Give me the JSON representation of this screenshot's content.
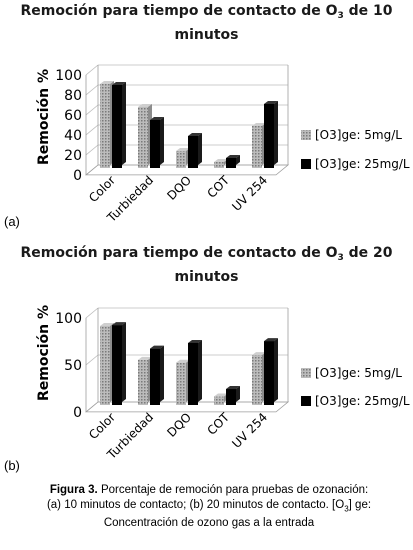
{
  "figure": {
    "label_a": "(a)",
    "label_b": "(b)",
    "caption_bold": "Figura 3.",
    "caption_part1": " Porcentaje de remoción para pruebas de ozonación: (a) 10 minutos de contacto; (b) 20 minutos de contacto. [O",
    "caption_sub": "3",
    "caption_part2": "] ge: Concentración de ozono gas a la entrada"
  },
  "chart_data": [
    {
      "type": "bar",
      "title_pre": "Remoción para tiempo de contacto de O",
      "title_sub": "3",
      "title_post": " de 10 minutos",
      "ylabel": "Remoción  %",
      "ylim": [
        0,
        100
      ],
      "yticks": [
        "0",
        "20",
        "40",
        "60",
        "80",
        "100"
      ],
      "categories": [
        "Color",
        "Turbiedad",
        "DQO",
        "COT",
        "UV 254"
      ],
      "legend_position": "right",
      "series": [
        {
          "name": "[O3]ge: 5mg/L",
          "values": [
            84,
            61,
            17,
            6,
            42
          ],
          "color": "#a8a8a8"
        },
        {
          "name": "[O3]ge: 25mg/L",
          "values": [
            83,
            48,
            32,
            10,
            64
          ],
          "color": "#000000"
        }
      ]
    },
    {
      "type": "bar",
      "title_pre": "Remoción para tiempo de contacto de O",
      "title_sub": "3",
      "title_post": " de 20 minutos",
      "ylabel": "Remoción  %",
      "ylim": [
        0,
        100
      ],
      "yticks": [
        "0",
        "50",
        "100"
      ],
      "categories": [
        "Color",
        "Turbiedad",
        "DQO",
        "COT",
        "UV 254"
      ],
      "legend_position": "right",
      "series": [
        {
          "name": "[O3]ge: 5mg/L",
          "values": [
            84,
            48,
            45,
            9,
            53
          ],
          "color": "#a8a8a8"
        },
        {
          "name": "[O3]ge: 25mg/L",
          "values": [
            85,
            60,
            66,
            17,
            68
          ],
          "color": "#000000"
        }
      ]
    }
  ]
}
